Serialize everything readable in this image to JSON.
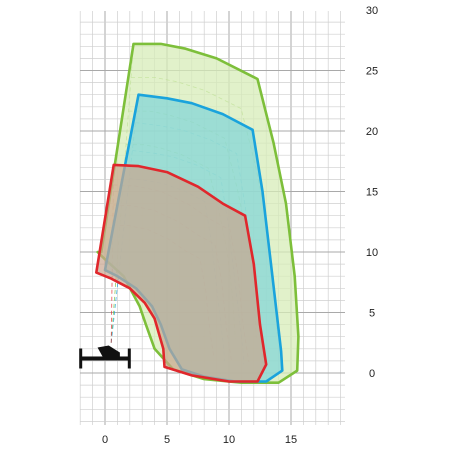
{
  "chart_data": {
    "type": "area",
    "title": "",
    "xlabel": "",
    "ylabel": "",
    "xlim": [
      -2.2,
      19.5
    ],
    "ylim": [
      -4,
      30
    ],
    "x_ticks": [
      0,
      5,
      10,
      15
    ],
    "x_tick_labels": [
      "0",
      "5",
      "10",
      "15"
    ],
    "y_ticks": [
      0,
      5,
      10,
      15,
      20,
      25,
      30
    ],
    "y_tick_labels": [
      "0",
      "5",
      "10",
      "15",
      "20",
      "25",
      "30"
    ],
    "grid": true,
    "legend": "none",
    "colors": {
      "green": "#7dbf3a",
      "blue": "#1aa3dc",
      "red": "#e0272c",
      "green_fill": "#d7ecb8",
      "blue_fill": "#7fd4d8",
      "red_fill": "#c9a58f"
    },
    "series": [
      {
        "color": "#7dbf3a",
        "fill": "#d7ecb8",
        "x": [
          -0.3,
          2.3,
          4.5,
          6.5,
          9.0,
          12.3,
          13.6,
          14.6,
          15.3,
          15.6,
          15.5,
          14.0,
          11.0,
          8.0,
          5.5,
          4.0,
          3.3,
          2.8,
          1.5,
          0.0,
          -0.6
        ],
        "y": [
          10.0,
          27.2,
          27.2,
          26.8,
          26.0,
          24.3,
          19.0,
          14.0,
          8.0,
          3.0,
          0.2,
          -0.8,
          -0.8,
          -0.5,
          0.3,
          2.0,
          4.0,
          5.5,
          8.0,
          9.4,
          10.0
        ]
      },
      {
        "color": "#1aa3dc",
        "fill": "#7fd4d8",
        "x": [
          0.0,
          2.7,
          5.0,
          7.0,
          9.5,
          11.9,
          12.7,
          13.5,
          14.2,
          14.3,
          13.0,
          10.5,
          8.0,
          6.2,
          5.2,
          4.5,
          3.8,
          2.5,
          1.0,
          0.0
        ],
        "y": [
          8.5,
          23.0,
          22.7,
          22.3,
          21.4,
          20.1,
          15.0,
          8.0,
          1.8,
          0.2,
          -0.7,
          -0.7,
          -0.3,
          0.3,
          2.0,
          4.0,
          5.5,
          7.0,
          8.0,
          8.5
        ]
      },
      {
        "color": "#e0272c",
        "fill": "#c9a58f",
        "x": [
          -0.7,
          0.7,
          2.7,
          5.0,
          7.5,
          9.5,
          11.3,
          12.0,
          12.5,
          13.0,
          12.3,
          10.0,
          7.0,
          4.8,
          4.7,
          4.0,
          3.2,
          2.0,
          0.5,
          -0.7
        ],
        "y": [
          8.3,
          17.2,
          17.1,
          16.6,
          15.4,
          14.0,
          13.0,
          9.0,
          4.0,
          0.7,
          -0.7,
          -0.7,
          -0.2,
          0.5,
          2.0,
          4.5,
          5.8,
          7.0,
          7.8,
          8.3
        ]
      }
    ],
    "markers": [
      {
        "name": "base",
        "x": 0.5,
        "y": 1.2
      }
    ]
  }
}
